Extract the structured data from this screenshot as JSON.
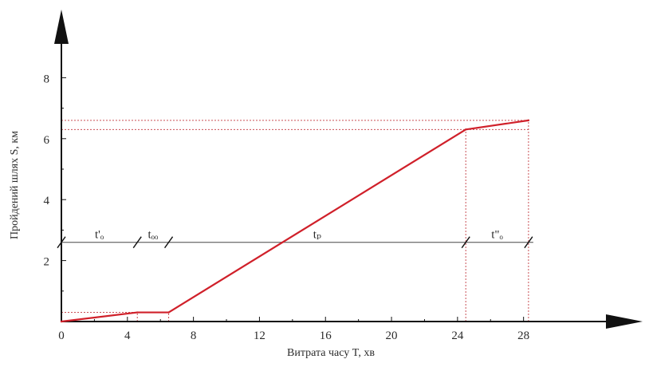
{
  "chart_data": {
    "type": "line",
    "title": "",
    "xlabel": "Витрата часу T, хв",
    "ylabel": "Пройдений шлях S, км",
    "xlim": [
      0,
      28
    ],
    "ylim": [
      0,
      8
    ],
    "x_ticks": [
      0,
      4,
      8,
      12,
      16,
      20,
      24,
      28
    ],
    "y_ticks": [
      2,
      4,
      6,
      8
    ],
    "grid": false,
    "series": [
      {
        "x": [
          0,
          4.6,
          6.5,
          24.5,
          28.3
        ],
        "y": [
          0,
          0.3,
          0.3,
          6.3,
          6.6
        ],
        "color": "#d0202a"
      }
    ],
    "reference_lines": {
      "vertical_x": [
        4.6,
        6.5,
        24.5,
        28.3
      ],
      "horizontal_y": [
        0.3,
        6.3,
        6.6
      ]
    },
    "segments": {
      "y": 2.6,
      "breaks_x": [
        0,
        4.6,
        6.5,
        24.5,
        28.3
      ],
      "labels": [
        "t'ₒ",
        "tₒₒ",
        "tₚ",
        "t\"ₒ"
      ]
    },
    "colors": {
      "line": "#d0202a",
      "reference": "#c94f55",
      "axis": "#111111",
      "segment_line": "#777777"
    }
  }
}
